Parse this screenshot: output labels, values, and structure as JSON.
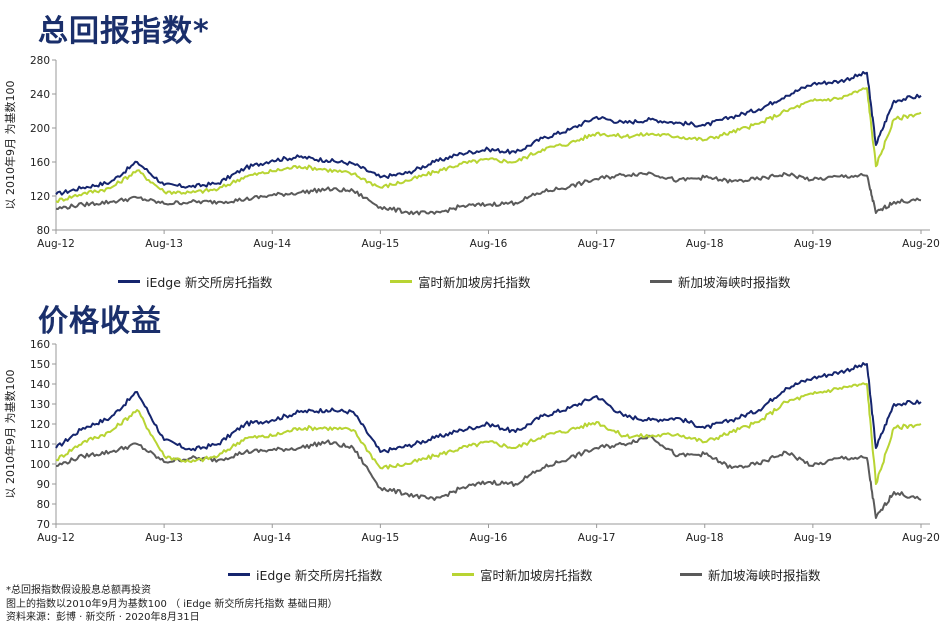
{
  "titles": {
    "total_return": "总回报指数*",
    "price_return": "价格收益"
  },
  "legend": {
    "iedge": "iEdge 新交所房托指数",
    "ftse": "富时新加坡房托指数",
    "straits": "新加坡海峡时报指数"
  },
  "notes": {
    "line1": "*总回报指数假设股息总额再投资",
    "line2": "图上的指数以2010年9月为基数100 （ iEdge 新交所房托指数 基础日期）",
    "line3": "资料来源：彭博 · 新交所 · 2020年8月31日"
  },
  "colors": {
    "iedge": "#15256e",
    "ftse": "#b8d433",
    "straits": "#5a5a5a"
  },
  "chart_data": [
    {
      "type": "line",
      "title": "总回报指数*",
      "ylabel": "以 2010年9月 为基数100",
      "ylim": [
        80,
        280
      ],
      "yticks": [
        "80",
        "120",
        "160",
        "200",
        "240",
        "280"
      ],
      "x": [
        "2012-08",
        "2012-11",
        "2013-02",
        "2013-05",
        "2013-08",
        "2013-11",
        "2014-02",
        "2014-05",
        "2014-08",
        "2014-11",
        "2015-02",
        "2015-05",
        "2015-08",
        "2015-11",
        "2016-02",
        "2016-05",
        "2016-08",
        "2016-11",
        "2017-02",
        "2017-05",
        "2017-08",
        "2017-11",
        "2018-02",
        "2018-05",
        "2018-08",
        "2018-11",
        "2019-02",
        "2019-05",
        "2019-08",
        "2019-11",
        "2020-02",
        "2020-03",
        "2020-05",
        "2020-08"
      ],
      "xticks": [
        "Aug-12",
        "Aug-13",
        "Aug-14",
        "Aug-15",
        "Aug-16",
        "Aug-17",
        "Aug-18",
        "Aug-19",
        "Aug-20"
      ],
      "legend": "bottom",
      "series": [
        {
          "name": "iEdge 新交所房托指数",
          "values": [
            122,
            130,
            136,
            160,
            133,
            131,
            135,
            153,
            162,
            166,
            162,
            158,
            142,
            147,
            160,
            170,
            175,
            171,
            188,
            198,
            213,
            206,
            210,
            206,
            203,
            213,
            222,
            238,
            252,
            255,
            265,
            180,
            232,
            238
          ]
        },
        {
          "name": "富时新加坡房托指数",
          "values": [
            114,
            123,
            129,
            150,
            125,
            124,
            128,
            143,
            149,
            155,
            151,
            146,
            130,
            138,
            148,
            158,
            163,
            160,
            175,
            182,
            194,
            190,
            193,
            190,
            186,
            195,
            205,
            220,
            232,
            235,
            247,
            155,
            210,
            218
          ]
        },
        {
          "name": "新加坡海峡时报指数",
          "values": [
            105,
            110,
            113,
            118,
            111,
            113,
            113,
            116,
            121,
            124,
            128,
            126,
            107,
            101,
            99,
            108,
            110,
            112,
            125,
            131,
            140,
            145,
            147,
            138,
            142,
            137,
            140,
            146,
            139,
            143,
            144,
            100,
            113,
            115
          ]
        }
      ]
    },
    {
      "type": "line",
      "title": "价格收益",
      "ylabel": "以 2010年9月 为基数100",
      "ylim": [
        70,
        160
      ],
      "yticks": [
        "70",
        "80",
        "90",
        "100",
        "110",
        "120",
        "130",
        "140",
        "150",
        "160"
      ],
      "x": [
        "2012-08",
        "2012-11",
        "2013-02",
        "2013-05",
        "2013-08",
        "2013-11",
        "2014-02",
        "2014-05",
        "2014-08",
        "2014-11",
        "2015-02",
        "2015-05",
        "2015-08",
        "2015-11",
        "2016-02",
        "2016-05",
        "2016-08",
        "2016-11",
        "2017-02",
        "2017-05",
        "2017-08",
        "2017-11",
        "2018-02",
        "2018-05",
        "2018-08",
        "2018-11",
        "2019-02",
        "2019-05",
        "2019-08",
        "2019-11",
        "2020-02",
        "2020-03",
        "2020-05",
        "2020-08"
      ],
      "xticks": [
        "Aug-12",
        "Aug-13",
        "Aug-14",
        "Aug-15",
        "Aug-16",
        "Aug-17",
        "Aug-18",
        "Aug-19",
        "Aug-20"
      ],
      "legend": "bottom",
      "series": [
        {
          "name": "iEdge 新交所房托指数",
          "values": [
            108,
            118,
            123,
            136,
            112,
            107,
            110,
            120,
            122,
            126,
            127,
            126,
            106,
            109,
            113,
            117,
            120,
            116,
            124,
            128,
            134,
            124,
            122,
            123,
            118,
            122,
            127,
            138,
            143,
            146,
            150,
            108,
            130,
            131
          ]
        },
        {
          "name": "富时新加坡房托指数",
          "values": [
            102,
            111,
            116,
            127,
            104,
            101,
            104,
            113,
            114,
            118,
            118,
            117,
            98,
            100,
            104,
            108,
            111,
            108,
            114,
            117,
            121,
            114,
            114,
            115,
            111,
            116,
            121,
            131,
            135,
            138,
            140,
            90,
            118,
            120
          ]
        },
        {
          "name": "新加坡海峡时报指数",
          "values": [
            99,
            104,
            106,
            110,
            101,
            103,
            102,
            106,
            107,
            108,
            111,
            108,
            88,
            85,
            82,
            88,
            91,
            90,
            98,
            103,
            108,
            110,
            114,
            104,
            105,
            98,
            100,
            106,
            99,
            103,
            103,
            73,
            86,
            82
          ]
        }
      ]
    }
  ]
}
